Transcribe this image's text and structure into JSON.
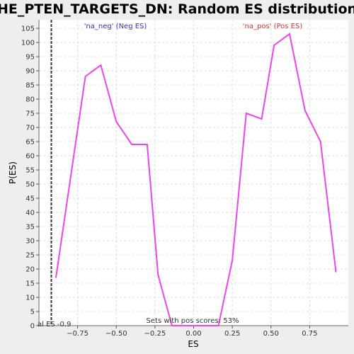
{
  "chart_data": {
    "type": "line",
    "title": "HE_PTEN_TARGETS_DN: Random ES distribution",
    "xlabel": "ES",
    "ylabel": "P(ES)",
    "xlim": [
      -1.0,
      1.0
    ],
    "ylim": [
      0,
      108
    ],
    "x_ticks": [
      -0.75,
      -0.5,
      -0.25,
      0.0,
      0.25,
      0.5,
      0.75
    ],
    "x_tick_labels": [
      "−0.75",
      "−0.50",
      "−0.25",
      "0.00",
      "0.25",
      "0.50",
      "0.75"
    ],
    "y_ticks": [
      0,
      5,
      10,
      15,
      20,
      25,
      30,
      35,
      40,
      45,
      50,
      55,
      60,
      65,
      70,
      75,
      80,
      85,
      90,
      95,
      100,
      105
    ],
    "grid": true,
    "series": [
      {
        "color": "#ee44ee",
        "x": [
          -0.89,
          -0.7,
          -0.6,
          -0.5,
          -0.4,
          -0.3,
          -0.23,
          -0.14,
          -0.06,
          0.06,
          0.16,
          0.25,
          0.34,
          0.44,
          0.52,
          0.62,
          0.72,
          0.82,
          0.92
        ],
        "y": [
          17,
          88,
          92,
          72,
          64,
          64,
          18,
          0,
          0,
          0,
          0,
          23,
          75,
          73,
          99,
          103,
          76,
          65,
          19
        ]
      }
    ],
    "vline": {
      "x": -0.92,
      "label": "al ES -0.9",
      "color": "#333333"
    },
    "annotations": {
      "neg_label": "'na_neg' (Neg ES)",
      "neg_color": "#3333cc",
      "pos_label": "'na_pos' (Pos ES)",
      "pos_color": "#dd3333",
      "pos_scores": "Sets with pos scores: 53%"
    }
  }
}
